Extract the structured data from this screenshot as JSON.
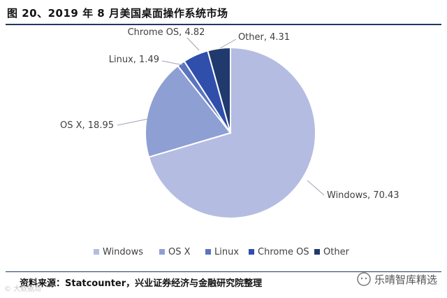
{
  "title": "图 20、2019 年 8 月美国桌面操作系统市场",
  "source": "资料来源：Statcounter，兴业证券经济与金融研究院整理",
  "watermark_left": "© 大数据局",
  "watermark_right": "乐晴智库精选",
  "chart_data": {
    "type": "pie",
    "title": "",
    "categories": [
      "Windows",
      "OS X",
      "Linux",
      "Chrome OS",
      "Other"
    ],
    "values": [
      70.43,
      18.95,
      1.49,
      4.82,
      4.31
    ],
    "labels": [
      "Windows, 70.43",
      "OS X, 18.95",
      "Linux, 1.49",
      "Chrome OS, 4.82",
      "Other, 4.31"
    ],
    "colors": [
      "#b4bce2",
      "#8e9fd3",
      "#5a74c0",
      "#2f4fab",
      "#203a6e"
    ],
    "legend": "bottom",
    "start": "top, clockwise"
  }
}
